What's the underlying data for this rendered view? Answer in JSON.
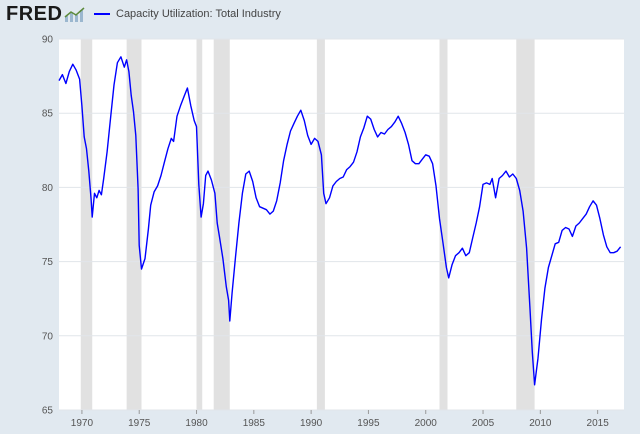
{
  "header": {
    "logo_text": "FRED",
    "logo_icon": "line-chart-icon"
  },
  "colors": {
    "background": "#e1e9f0",
    "plot_background": "#ffffff",
    "series": "#0000ff",
    "recession": "#e1e1e1",
    "grid": "#e1e5ea"
  },
  "chart_data": {
    "type": "line",
    "title": "",
    "xlabel": "",
    "ylabel": "",
    "xlim": [
      1968.0,
      2017.3
    ],
    "ylim": [
      65,
      90
    ],
    "yticks": [
      65,
      70,
      75,
      80,
      85,
      90
    ],
    "xticks": [
      1970,
      1975,
      1980,
      1985,
      1990,
      1995,
      2000,
      2005,
      2010,
      2015
    ],
    "recessions": [
      [
        1969.9,
        1970.9
      ],
      [
        1973.9,
        1975.2
      ],
      [
        1980.0,
        1980.5
      ],
      [
        1981.5,
        1982.9
      ],
      [
        1990.5,
        1991.2
      ],
      [
        2001.2,
        2001.9
      ],
      [
        2007.9,
        2009.5
      ]
    ],
    "series": [
      {
        "name": "Capacity Utilization: Total Industry",
        "x": [
          1968.0,
          1968.3,
          1968.6,
          1968.9,
          1969.2,
          1969.5,
          1969.8,
          1970.0,
          1970.2,
          1970.4,
          1970.6,
          1970.8,
          1970.9,
          1971.1,
          1971.3,
          1971.5,
          1971.7,
          1971.9,
          1972.2,
          1972.5,
          1972.8,
          1973.1,
          1973.4,
          1973.7,
          1973.9,
          1974.1,
          1974.3,
          1974.5,
          1974.7,
          1974.9,
          1975.0,
          1975.2,
          1975.5,
          1975.8,
          1976.0,
          1976.3,
          1976.6,
          1976.9,
          1977.2,
          1977.5,
          1977.8,
          1978.0,
          1978.3,
          1978.6,
          1978.9,
          1979.2,
          1979.5,
          1979.8,
          1980.0,
          1980.2,
          1980.4,
          1980.6,
          1980.8,
          1981.0,
          1981.3,
          1981.6,
          1981.8,
          1982.0,
          1982.3,
          1982.6,
          1982.8,
          1982.9,
          1983.1,
          1983.4,
          1983.7,
          1984.0,
          1984.3,
          1984.6,
          1984.9,
          1985.2,
          1985.5,
          1985.8,
          1986.1,
          1986.4,
          1986.7,
          1987.0,
          1987.3,
          1987.6,
          1987.9,
          1988.2,
          1988.5,
          1988.8,
          1989.1,
          1989.4,
          1989.7,
          1990.0,
          1990.3,
          1990.6,
          1990.9,
          1991.1,
          1991.3,
          1991.6,
          1991.9,
          1992.2,
          1992.5,
          1992.8,
          1993.1,
          1993.4,
          1993.7,
          1994.0,
          1994.3,
          1994.6,
          1994.9,
          1995.2,
          1995.5,
          1995.8,
          1996.1,
          1996.4,
          1996.7,
          1997.0,
          1997.3,
          1997.6,
          1997.9,
          1998.2,
          1998.5,
          1998.8,
          1999.1,
          1999.4,
          1999.7,
          2000.0,
          2000.3,
          2000.6,
          2000.9,
          2001.2,
          2001.5,
          2001.8,
          2002.0,
          2002.3,
          2002.6,
          2002.9,
          2003.2,
          2003.5,
          2003.8,
          2004.1,
          2004.4,
          2004.7,
          2005.0,
          2005.3,
          2005.6,
          2005.8,
          2006.1,
          2006.4,
          2006.7,
          2007.0,
          2007.3,
          2007.6,
          2007.9,
          2008.2,
          2008.5,
          2008.8,
          2009.1,
          2009.3,
          2009.5,
          2009.8,
          2010.1,
          2010.4,
          2010.7,
          2011.0,
          2011.3,
          2011.6,
          2011.9,
          2012.2,
          2012.5,
          2012.8,
          2013.1,
          2013.4,
          2013.7,
          2014.0,
          2014.3,
          2014.6,
          2014.9,
          2015.2,
          2015.5,
          2015.8,
          2016.1,
          2016.4,
          2016.7,
          2017.0
        ],
        "values": [
          87.2,
          87.6,
          87.0,
          87.8,
          88.3,
          87.9,
          87.3,
          85.5,
          83.4,
          82.6,
          81.1,
          79.2,
          78.0,
          79.6,
          79.3,
          79.8,
          79.5,
          80.6,
          82.4,
          84.7,
          86.9,
          88.4,
          88.8,
          88.1,
          88.6,
          87.8,
          86.2,
          85.1,
          83.5,
          79.9,
          76.1,
          74.5,
          75.2,
          77.2,
          78.8,
          79.7,
          80.1,
          80.8,
          81.7,
          82.6,
          83.3,
          83.1,
          84.8,
          85.5,
          86.1,
          86.7,
          85.5,
          84.5,
          84.1,
          80.2,
          78.0,
          78.9,
          80.8,
          81.1,
          80.5,
          79.6,
          77.6,
          76.7,
          75.2,
          73.3,
          72.4,
          71.0,
          72.9,
          75.3,
          77.6,
          79.6,
          80.9,
          81.1,
          80.4,
          79.3,
          78.7,
          78.6,
          78.5,
          78.2,
          78.4,
          79.1,
          80.3,
          81.8,
          82.9,
          83.8,
          84.3,
          84.8,
          85.2,
          84.5,
          83.5,
          82.9,
          83.3,
          83.1,
          82.2,
          79.6,
          78.9,
          79.3,
          80.1,
          80.4,
          80.6,
          80.7,
          81.2,
          81.4,
          81.7,
          82.4,
          83.4,
          84.0,
          84.8,
          84.6,
          83.9,
          83.4,
          83.7,
          83.6,
          83.9,
          84.1,
          84.4,
          84.8,
          84.3,
          83.7,
          82.9,
          81.8,
          81.6,
          81.6,
          81.9,
          82.2,
          82.1,
          81.6,
          80.1,
          77.9,
          76.3,
          74.6,
          73.9,
          74.8,
          75.4,
          75.6,
          75.9,
          75.4,
          75.6,
          76.6,
          77.6,
          78.7,
          80.2,
          80.3,
          80.2,
          80.6,
          79.3,
          80.6,
          80.8,
          81.1,
          80.7,
          80.9,
          80.6,
          79.8,
          78.4,
          75.9,
          71.8,
          68.9,
          66.7,
          68.5,
          71.1,
          73.2,
          74.6,
          75.4,
          76.2,
          76.3,
          77.1,
          77.3,
          77.2,
          76.7,
          77.4,
          77.6,
          77.9,
          78.2,
          78.7,
          79.1,
          78.8,
          77.9,
          76.8,
          76.0,
          75.6,
          75.6,
          75.7,
          76.0
        ]
      }
    ]
  }
}
